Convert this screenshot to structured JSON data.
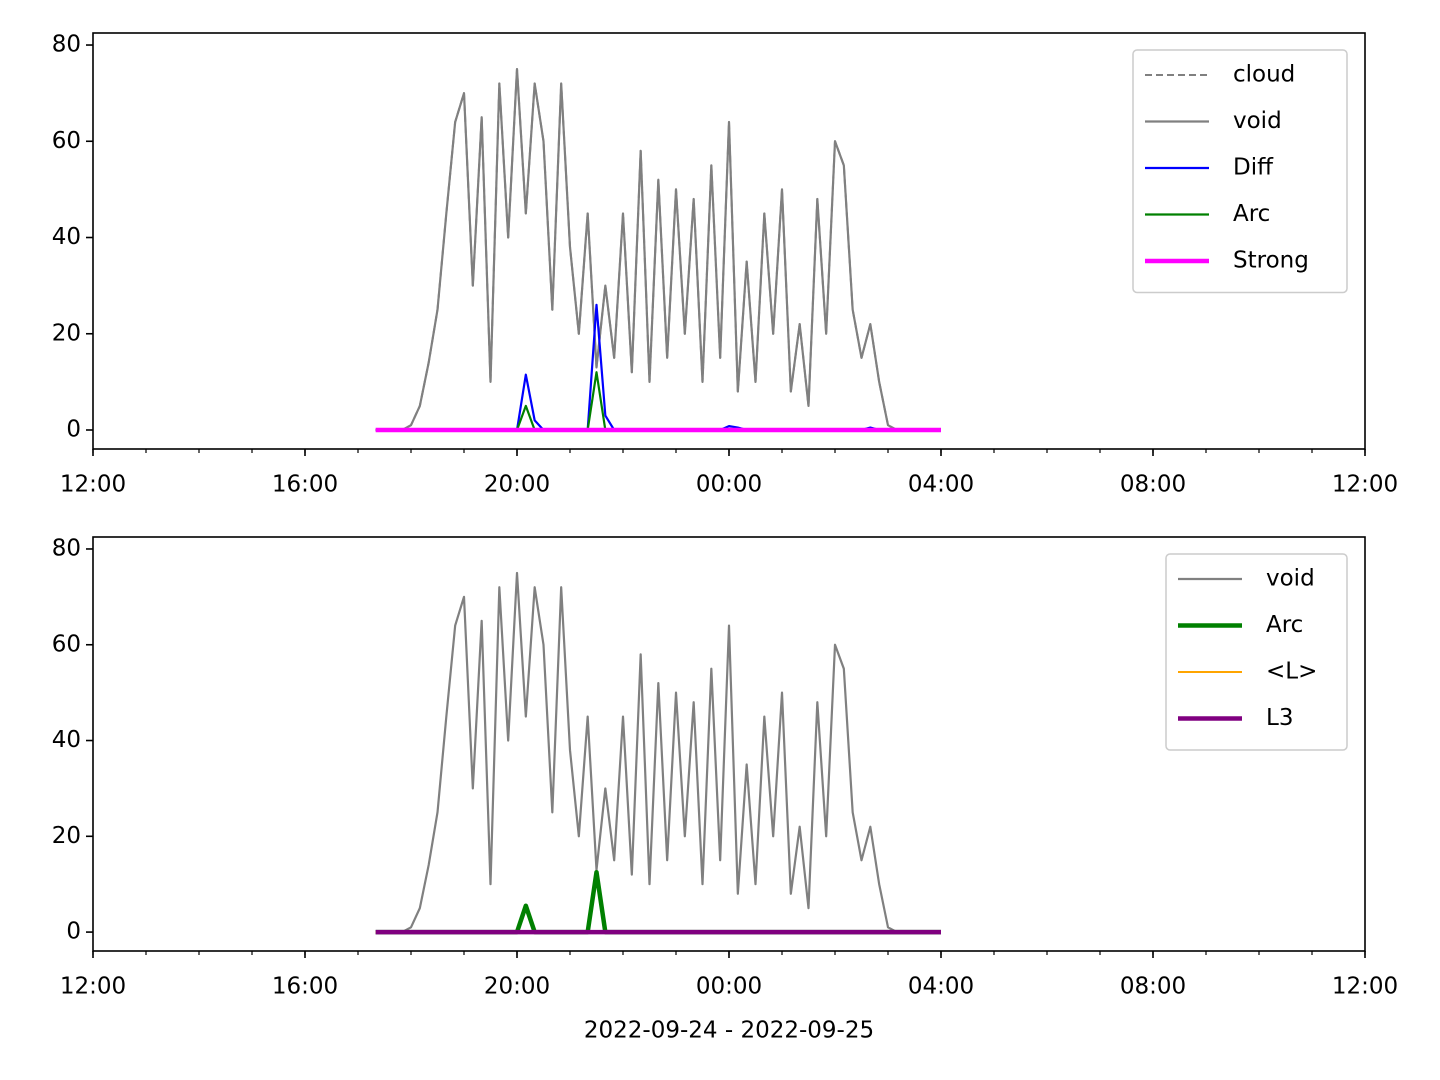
{
  "chart_data": [
    {
      "type": "line",
      "x": [
        "2022-09-24T17:20",
        "2022-09-24T17:30",
        "2022-09-24T17:40",
        "2022-09-24T17:50",
        "2022-09-24T18:00",
        "2022-09-24T18:10",
        "2022-09-24T18:20",
        "2022-09-24T18:30",
        "2022-09-24T18:40",
        "2022-09-24T18:50",
        "2022-09-24T19:00",
        "2022-09-24T19:10",
        "2022-09-24T19:20",
        "2022-09-24T19:30",
        "2022-09-24T19:40",
        "2022-09-24T19:50",
        "2022-09-24T20:00",
        "2022-09-24T20:10",
        "2022-09-24T20:20",
        "2022-09-24T20:30",
        "2022-09-24T20:40",
        "2022-09-24T20:50",
        "2022-09-24T21:00",
        "2022-09-24T21:10",
        "2022-09-24T21:20",
        "2022-09-24T21:30",
        "2022-09-24T21:40",
        "2022-09-24T21:50",
        "2022-09-24T22:00",
        "2022-09-24T22:10",
        "2022-09-24T22:20",
        "2022-09-24T22:30",
        "2022-09-24T22:40",
        "2022-09-24T22:50",
        "2022-09-24T23:00",
        "2022-09-24T23:10",
        "2022-09-24T23:20",
        "2022-09-24T23:30",
        "2022-09-24T23:40",
        "2022-09-24T23:50",
        "2022-09-25T00:00",
        "2022-09-25T00:10",
        "2022-09-25T00:20",
        "2022-09-25T00:30",
        "2022-09-25T00:40",
        "2022-09-25T00:50",
        "2022-09-25T01:00",
        "2022-09-25T01:10",
        "2022-09-25T01:20",
        "2022-09-25T01:30",
        "2022-09-25T01:40",
        "2022-09-25T01:50",
        "2022-09-25T02:00",
        "2022-09-25T02:10",
        "2022-09-25T02:20",
        "2022-09-25T02:30",
        "2022-09-25T02:40",
        "2022-09-25T02:50",
        "2022-09-25T03:00",
        "2022-09-25T03:10",
        "2022-09-25T03:20",
        "2022-09-25T03:30",
        "2022-09-25T03:40",
        "2022-09-25T03:50",
        "2022-09-25T04:00"
      ],
      "series": [
        {
          "name": "cloud",
          "color": "#808080",
          "linestyle": "dashed",
          "linewidth": 2,
          "values": [
            0,
            0,
            0,
            0,
            1,
            5,
            14,
            25,
            45,
            64,
            70,
            30,
            65,
            10,
            72,
            40,
            75,
            45,
            72,
            60,
            25,
            72,
            38,
            20,
            45,
            13,
            30,
            15,
            45,
            12,
            58,
            10,
            52,
            15,
            50,
            20,
            48,
            10,
            55,
            15,
            64,
            8,
            35,
            10,
            45,
            20,
            50,
            8,
            22,
            5,
            48,
            20,
            60,
            55,
            25,
            15,
            22,
            10,
            1,
            0,
            0,
            0,
            0,
            0,
            0
          ]
        },
        {
          "name": "void",
          "color": "#808080",
          "linewidth": 2.2,
          "values": [
            0,
            0,
            0,
            0,
            1,
            5,
            14,
            25,
            45,
            64,
            70,
            30,
            65,
            10,
            72,
            40,
            75,
            45,
            72,
            60,
            25,
            72,
            38,
            20,
            45,
            13,
            30,
            15,
            45,
            12,
            58,
            10,
            52,
            15,
            50,
            20,
            48,
            10,
            55,
            15,
            64,
            8,
            35,
            10,
            45,
            20,
            50,
            8,
            22,
            5,
            48,
            20,
            60,
            55,
            25,
            15,
            22,
            10,
            1,
            0,
            0,
            0,
            0,
            0,
            0
          ]
        },
        {
          "name": "Diff",
          "color": "#0000ff",
          "linewidth": 2.2,
          "values": [
            0,
            0,
            0,
            0,
            0,
            0,
            0,
            0,
            0,
            0,
            0,
            0,
            0,
            0,
            0,
            0,
            0,
            11.5,
            2,
            0,
            0,
            0,
            0,
            0,
            0,
            26,
            3,
            0,
            0,
            0,
            0,
            0,
            0,
            0,
            0,
            0,
            0,
            0,
            0,
            0,
            0.8,
            0.5,
            0,
            0,
            0,
            0,
            0,
            0,
            0,
            0,
            0,
            0,
            0,
            0,
            0,
            0,
            0.5,
            0,
            0,
            0,
            0,
            0,
            0,
            0,
            0
          ]
        },
        {
          "name": "Arc",
          "color": "#008000",
          "linewidth": 2.2,
          "values": [
            0,
            0,
            0,
            0,
            0,
            0,
            0,
            0,
            0,
            0,
            0,
            0,
            0,
            0,
            0,
            0,
            0,
            5,
            0,
            0,
            0,
            0,
            0,
            0,
            0,
            12,
            0,
            0,
            0,
            0,
            0,
            0,
            0,
            0,
            0,
            0,
            0,
            0,
            0,
            0,
            0,
            0,
            0,
            0,
            0,
            0,
            0,
            0,
            0,
            0,
            0,
            0,
            0,
            0,
            0,
            0,
            0,
            0,
            0,
            0,
            0,
            0,
            0,
            0,
            0
          ]
        },
        {
          "name": "Strong",
          "color": "#ff00ff",
          "linewidth": 4.5,
          "values": [
            0,
            0,
            0,
            0,
            0,
            0,
            0,
            0,
            0,
            0,
            0,
            0,
            0,
            0,
            0,
            0,
            0,
            0,
            0,
            0,
            0,
            0,
            0,
            0,
            0,
            0,
            0,
            0,
            0,
            0,
            0,
            0,
            0,
            0,
            0,
            0,
            0,
            0,
            0,
            0,
            0,
            0,
            0,
            0,
            0,
            0,
            0,
            0,
            0,
            0,
            0,
            0,
            0,
            0,
            0,
            0,
            0,
            0,
            0,
            0,
            0,
            0,
            0,
            0,
            0
          ]
        }
      ],
      "xlim": [
        "2022-09-24T12:00",
        "2022-09-25T12:00"
      ],
      "xticks": [
        {
          "value": "2022-09-24T12:00",
          "label": "12:00"
        },
        {
          "value": "2022-09-24T16:00",
          "label": "16:00"
        },
        {
          "value": "2022-09-24T20:00",
          "label": "20:00"
        },
        {
          "value": "2022-09-25T00:00",
          "label": "00:00"
        },
        {
          "value": "2022-09-25T04:00",
          "label": "04:00"
        },
        {
          "value": "2022-09-25T08:00",
          "label": "08:00"
        },
        {
          "value": "2022-09-25T12:00",
          "label": "12:00"
        }
      ],
      "ylim": [
        -3.95,
        82.5
      ],
      "yticks": [
        0,
        20,
        40,
        60,
        80
      ],
      "legend": "upper right"
    },
    {
      "type": "line",
      "x": [
        "2022-09-24T17:20",
        "2022-09-24T17:30",
        "2022-09-24T17:40",
        "2022-09-24T17:50",
        "2022-09-24T18:00",
        "2022-09-24T18:10",
        "2022-09-24T18:20",
        "2022-09-24T18:30",
        "2022-09-24T18:40",
        "2022-09-24T18:50",
        "2022-09-24T19:00",
        "2022-09-24T19:10",
        "2022-09-24T19:20",
        "2022-09-24T19:30",
        "2022-09-24T19:40",
        "2022-09-24T19:50",
        "2022-09-24T20:00",
        "2022-09-24T20:10",
        "2022-09-24T20:20",
        "2022-09-24T20:30",
        "2022-09-24T20:40",
        "2022-09-24T20:50",
        "2022-09-24T21:00",
        "2022-09-24T21:10",
        "2022-09-24T21:20",
        "2022-09-24T21:30",
        "2022-09-24T21:40",
        "2022-09-24T21:50",
        "2022-09-24T22:00",
        "2022-09-24T22:10",
        "2022-09-24T22:20",
        "2022-09-24T22:30",
        "2022-09-24T22:40",
        "2022-09-24T22:50",
        "2022-09-24T23:00",
        "2022-09-24T23:10",
        "2022-09-24T23:20",
        "2022-09-24T23:30",
        "2022-09-24T23:40",
        "2022-09-24T23:50",
        "2022-09-25T00:00",
        "2022-09-25T00:10",
        "2022-09-25T00:20",
        "2022-09-25T00:30",
        "2022-09-25T00:40",
        "2022-09-25T00:50",
        "2022-09-25T01:00",
        "2022-09-25T01:10",
        "2022-09-25T01:20",
        "2022-09-25T01:30",
        "2022-09-25T01:40",
        "2022-09-25T01:50",
        "2022-09-25T02:00",
        "2022-09-25T02:10",
        "2022-09-25T02:20",
        "2022-09-25T02:30",
        "2022-09-25T02:40",
        "2022-09-25T02:50",
        "2022-09-25T03:00",
        "2022-09-25T03:10",
        "2022-09-25T03:20",
        "2022-09-25T03:30",
        "2022-09-25T03:40",
        "2022-09-25T03:50",
        "2022-09-25T04:00"
      ],
      "series": [
        {
          "name": "void",
          "color": "#808080",
          "linewidth": 2.2,
          "values": [
            0,
            0,
            0,
            0,
            1,
            5,
            14,
            25,
            45,
            64,
            70,
            30,
            65,
            10,
            72,
            40,
            75,
            45,
            72,
            60,
            25,
            72,
            38,
            20,
            45,
            13,
            30,
            15,
            45,
            12,
            58,
            10,
            52,
            15,
            50,
            20,
            48,
            10,
            55,
            15,
            64,
            8,
            35,
            10,
            45,
            20,
            50,
            8,
            22,
            5,
            48,
            20,
            60,
            55,
            25,
            15,
            22,
            10,
            1,
            0,
            0,
            0,
            0,
            0,
            0
          ]
        },
        {
          "name": "Arc",
          "color": "#008000",
          "linewidth": 4.5,
          "values": [
            0,
            0,
            0,
            0,
            0,
            0,
            0,
            0,
            0,
            0,
            0,
            0,
            0,
            0,
            0,
            0,
            0,
            5.5,
            0,
            0,
            0,
            0,
            0,
            0,
            0,
            12.5,
            0,
            0,
            0,
            0,
            0,
            0,
            0,
            0,
            0,
            0,
            0,
            0,
            0,
            0,
            0,
            0,
            0,
            0,
            0,
            0,
            0,
            0,
            0,
            0,
            0,
            0,
            0,
            0,
            0,
            0,
            0,
            0,
            0,
            0,
            0,
            0,
            0,
            0,
            0
          ]
        },
        {
          "name": "<L>",
          "color": "#ffa500",
          "linewidth": 2,
          "values": [
            0,
            0,
            0,
            0,
            0,
            0,
            0,
            0,
            0,
            0,
            0,
            0,
            0,
            0,
            0,
            0,
            0,
            0,
            0,
            0,
            0,
            0,
            0,
            0,
            0,
            0,
            0,
            0,
            0,
            0,
            0,
            0,
            0,
            0,
            0,
            0,
            0,
            0,
            0,
            0,
            0,
            0,
            0,
            0,
            0,
            0,
            0,
            0,
            0,
            0,
            0,
            0,
            0,
            0,
            0,
            0,
            0,
            0,
            0,
            0,
            0,
            0,
            0,
            0,
            0
          ]
        },
        {
          "name": "L3",
          "color": "#800080",
          "linewidth": 4.5,
          "values": [
            0,
            0,
            0,
            0,
            0,
            0,
            0,
            0,
            0,
            0,
            0,
            0,
            0,
            0,
            0,
            0,
            0,
            0,
            0,
            0,
            0,
            0,
            0,
            0,
            0,
            0,
            0,
            0,
            0,
            0,
            0,
            0,
            0,
            0,
            0,
            0,
            0,
            0,
            0,
            0,
            0,
            0,
            0,
            0,
            0,
            0,
            0,
            0,
            0,
            0,
            0,
            0,
            0,
            0,
            0,
            0,
            0,
            0,
            0,
            0,
            0,
            0,
            0,
            0,
            0
          ]
        }
      ],
      "xlim": [
        "2022-09-24T12:00",
        "2022-09-25T12:00"
      ],
      "xticks": [
        {
          "value": "2022-09-24T12:00",
          "label": "12:00"
        },
        {
          "value": "2022-09-24T16:00",
          "label": "16:00"
        },
        {
          "value": "2022-09-24T20:00",
          "label": "20:00"
        },
        {
          "value": "2022-09-25T00:00",
          "label": "00:00"
        },
        {
          "value": "2022-09-25T04:00",
          "label": "04:00"
        },
        {
          "value": "2022-09-25T08:00",
          "label": "08:00"
        },
        {
          "value": "2022-09-25T12:00",
          "label": "12:00"
        }
      ],
      "ylim": [
        -3.95,
        82.5
      ],
      "yticks": [
        0,
        20,
        40,
        60,
        80
      ],
      "legend": "upper right",
      "xlabel": "2022-09-24 - 2022-09-25"
    }
  ]
}
